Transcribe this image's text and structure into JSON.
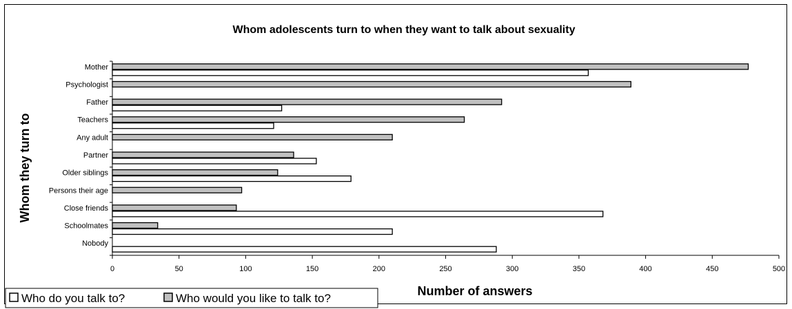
{
  "chart_data": {
    "type": "bar",
    "orientation": "horizontal",
    "title": "Whom adolescents turn to when they want to talk about sexuality",
    "xlabel": "Number of answers",
    "ylabel": "Whom they turn to",
    "xlim": [
      0,
      500
    ],
    "xticks": [
      0,
      50,
      100,
      150,
      200,
      250,
      300,
      350,
      400,
      450,
      500
    ],
    "grid": false,
    "legend_position": "bottom-left",
    "categories": [
      "Mother",
      "Psychologist",
      "Father",
      "Teachers",
      "Any adult",
      "Partner",
      "Older siblings",
      "Persons their age",
      "Close friends",
      "Schoolmates",
      "Nobody"
    ],
    "series": [
      {
        "name": "Who would you like to talk to?",
        "color": "#c0c0c0",
        "values": [
          477,
          389,
          292,
          264,
          210,
          136,
          124,
          97,
          93,
          34,
          0
        ]
      },
      {
        "name": "Who do you talk to?",
        "color": "#ffffff",
        "values": [
          357,
          0,
          127,
          121,
          0,
          153,
          179,
          0,
          368,
          210,
          288
        ]
      }
    ]
  }
}
